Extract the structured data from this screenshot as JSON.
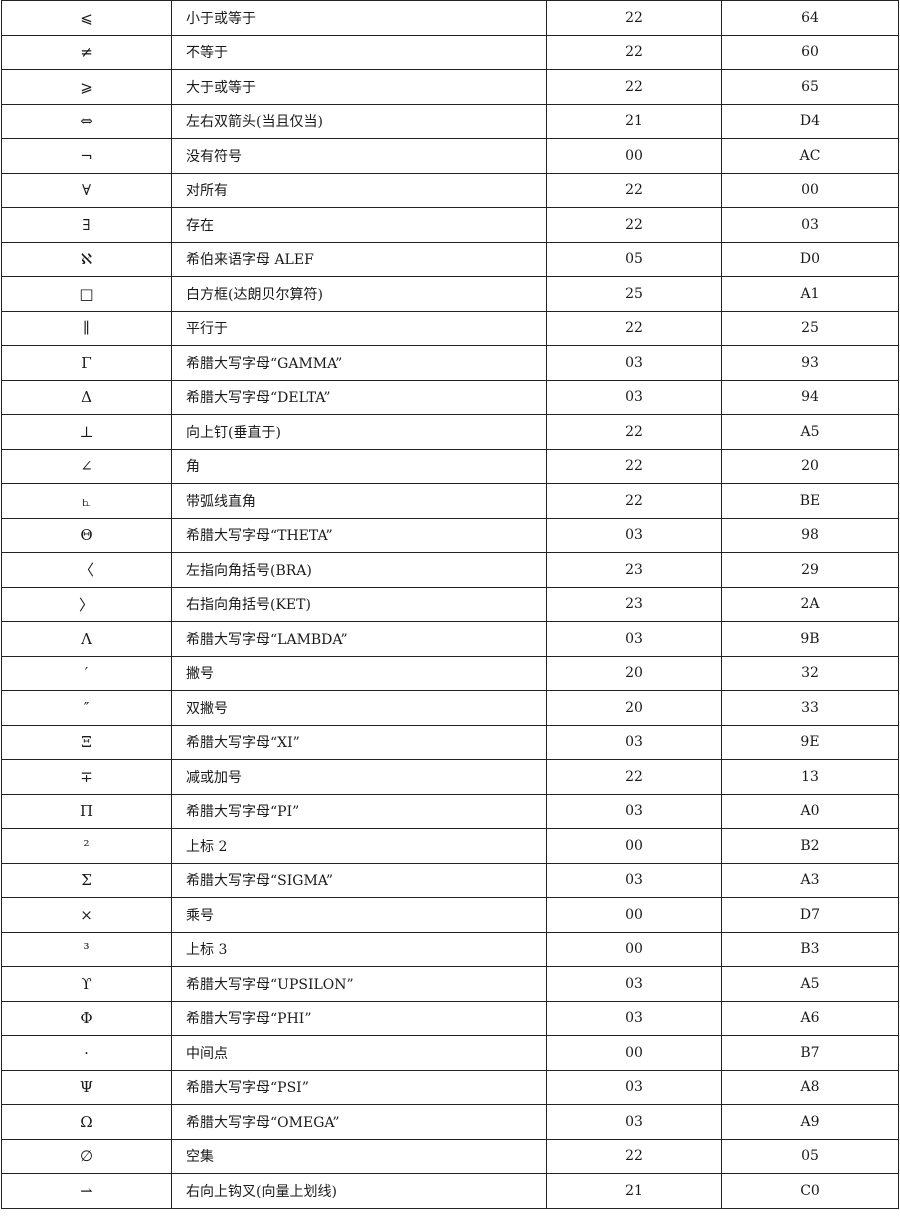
{
  "rows": [
    {
      "symbol": "⩽",
      "name": "小于或等于",
      "code1": "22",
      "code2": "64"
    },
    {
      "symbol": "≠",
      "name": "不等于",
      "code1": "22",
      "code2": "60"
    },
    {
      "symbol": "⩾",
      "name": "大于或等于",
      "code1": "22",
      "code2": "65"
    },
    {
      "symbol": "⇔",
      "name": "左右双箭头(当且仅当)",
      "code1": "21",
      "code2": "D4"
    },
    {
      "symbol": "¬",
      "name": "没有符号",
      "code1": "00",
      "code2": "AC"
    },
    {
      "symbol": "∀",
      "name": "对所有",
      "code1": "22",
      "code2": "00"
    },
    {
      "symbol": "∃",
      "name": "存在",
      "code1": "22",
      "code2": "03"
    },
    {
      "symbol": "ℵ",
      "name": "希伯来语字母 ALEF",
      "code1": "05",
      "code2": "D0"
    },
    {
      "symbol": "□",
      "name": "白方框(达朗贝尔算符)",
      "code1": "25",
      "code2": "A1"
    },
    {
      "symbol": "∥",
      "name": "平行于",
      "code1": "22",
      "code2": "25"
    },
    {
      "symbol": "Γ",
      "name": "希腊大写字母“GAMMA”",
      "code1": "03",
      "code2": "93"
    },
    {
      "symbol": "Δ",
      "name": "希腊大写字母“DELTA”",
      "code1": "03",
      "code2": "94"
    },
    {
      "symbol": "⊥",
      "name": "向上钉(垂直于)",
      "code1": "22",
      "code2": "A5"
    },
    {
      "symbol": "∠",
      "name": "角",
      "code1": "22",
      "code2": "20"
    },
    {
      "symbol": "⦜",
      "name": "带弧线直角",
      "code1": "22",
      "code2": "BE"
    },
    {
      "symbol": "Θ",
      "name": "希腊大写字母“THETA”",
      "code1": "03",
      "code2": "98"
    },
    {
      "symbol": "〈",
      "name": "左指向角括号(BRA)",
      "code1": "23",
      "code2": "29"
    },
    {
      "symbol": "〉",
      "name": "右指向角括号(KET)",
      "code1": "23",
      "code2": "2A"
    },
    {
      "symbol": "Λ",
      "name": "希腊大写字母“LAMBDA”",
      "code1": "03",
      "code2": "9B"
    },
    {
      "symbol": "′",
      "name": "撇号",
      "code1": "20",
      "code2": "32"
    },
    {
      "symbol": "″",
      "name": "双撇号",
      "code1": "20",
      "code2": "33"
    },
    {
      "symbol": "Ξ",
      "name": "希腊大写字母“XI”",
      "code1": "03",
      "code2": "9E"
    },
    {
      "symbol": "∓",
      "name": "减或加号",
      "code1": "22",
      "code2": "13"
    },
    {
      "symbol": "Π",
      "name": "希腊大写字母“PI”",
      "code1": "03",
      "code2": "A0"
    },
    {
      "symbol": "²",
      "name": "上标 2",
      "code1": "00",
      "code2": "B2"
    },
    {
      "symbol": "Σ",
      "name": "希腊大写字母“SIGMA”",
      "code1": "03",
      "code2": "A3"
    },
    {
      "symbol": "×",
      "name": "乘号",
      "code1": "00",
      "code2": "D7"
    },
    {
      "symbol": "³",
      "name": "上标 3",
      "code1": "00",
      "code2": "B3"
    },
    {
      "symbol": "ϒ",
      "name": "希腊大写字母“UPSILON”",
      "code1": "03",
      "code2": "A5"
    },
    {
      "symbol": "Φ",
      "name": "希腊大写字母“PHI”",
      "code1": "03",
      "code2": "A6"
    },
    {
      "symbol": "·",
      "name": "中间点",
      "code1": "00",
      "code2": "B7"
    },
    {
      "symbol": "Ψ",
      "name": "希腊大写字母“PSI”",
      "code1": "03",
      "code2": "A8"
    },
    {
      "symbol": "Ω",
      "name": "希腊大写字母“OMEGA”",
      "code1": "03",
      "code2": "A9"
    },
    {
      "symbol": "∅",
      "name": "空集",
      "code1": "22",
      "code2": "05"
    },
    {
      "symbol": "⇀",
      "name": "右向上钩叉(向量上划线)",
      "code1": "21",
      "code2": "C0"
    }
  ]
}
